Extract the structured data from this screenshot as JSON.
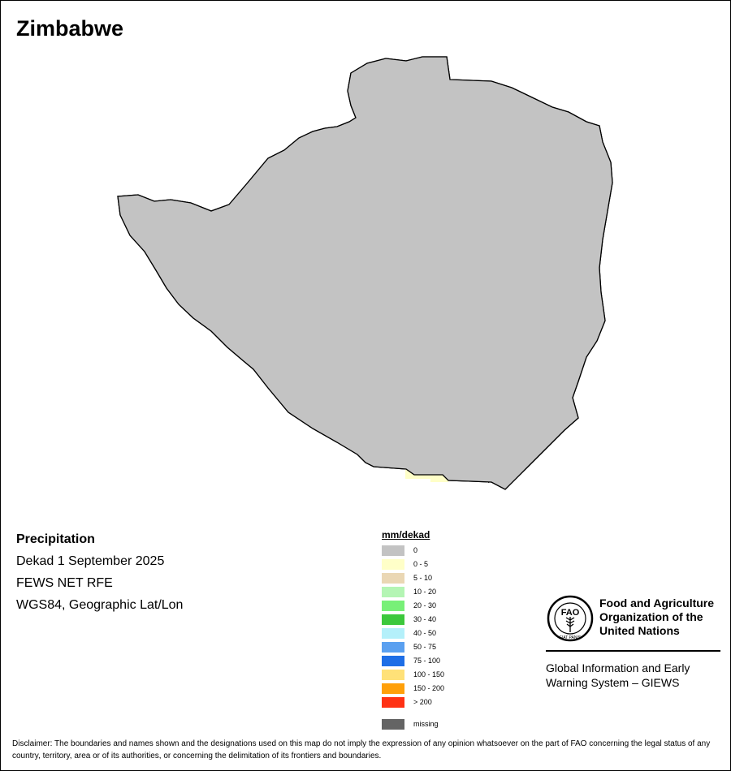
{
  "map": {
    "title": "Zimbabwe",
    "country_fill": "#c3c3c3",
    "boundary_color": "#000000"
  },
  "info": {
    "heading": "Precipitation",
    "period": "Dekad 1 September 2025",
    "source": "FEWS NET RFE",
    "projection": "WGS84, Geographic Lat/Lon"
  },
  "legend": {
    "title": "mm/dekad",
    "items": [
      {
        "label": "0",
        "color": "#c3c3c3"
      },
      {
        "label": "0 - 5",
        "color": "#ffffc8"
      },
      {
        "label": "5 - 10",
        "color": "#ead7b4"
      },
      {
        "label": "10 - 20",
        "color": "#b4f5b4"
      },
      {
        "label": "20 - 30",
        "color": "#78f078"
      },
      {
        "label": "30 - 40",
        "color": "#3cc83c"
      },
      {
        "label": "40 - 50",
        "color": "#b4f0fa"
      },
      {
        "label": "50 - 75",
        "color": "#5aa0f0"
      },
      {
        "label": "75 - 100",
        "color": "#1e6ee6"
      },
      {
        "label": "100 - 150",
        "color": "#ffe178"
      },
      {
        "label": "150 - 200",
        "color": "#ffa00a"
      },
      {
        "label": "> 200",
        "color": "#ff3214"
      }
    ],
    "missing": {
      "label": "missing",
      "color": "#646464"
    }
  },
  "fao": {
    "logo_top_text": "FAO",
    "logo_motto": "FIAT PANIS",
    "name_lines": [
      "Food and Agriculture",
      "Organization of the",
      "United Nations"
    ],
    "giews_lines": [
      "Global Information and Early",
      "Warning System – GIEWS"
    ]
  },
  "disclaimer": "Disclaimer: The boundaries and names shown and the designations used on this map do not imply the expression of any opinion whatsoever on the part of FAO concerning the legal status of any country, territory, area or of its authorities, or concerning the delimitation of its frontiers and boundaries."
}
